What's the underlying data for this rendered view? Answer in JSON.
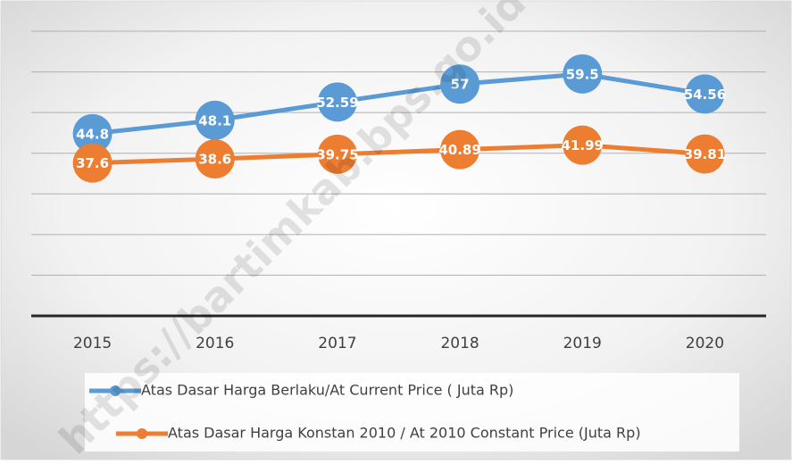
{
  "chart_data": {
    "type": "line",
    "categories": [
      "2015",
      "2016",
      "2017",
      "2018",
      "2019",
      "2020"
    ],
    "series": [
      {
        "name": "Atas Dasar Harga Berlaku/At Current Price ( Juta Rp)",
        "color": "#5b9bd5",
        "values": [
          44.8,
          48.1,
          52.59,
          57,
          59.5,
          54.56
        ]
      },
      {
        "name": "Atas Dasar Harga Konstan 2010 / At 2010 Constant Price (Juta Rp)",
        "color": "#ed7d31",
        "values": [
          37.6,
          38.6,
          39.75,
          40.89,
          41.99,
          39.81
        ]
      }
    ],
    "ylim": [
      0,
      70
    ],
    "yticks": [
      0,
      10,
      20,
      30,
      40,
      50,
      60,
      70
    ],
    "grid": true,
    "legend": "bottom",
    "watermark": "https://bartimkab.bps.go.id"
  }
}
